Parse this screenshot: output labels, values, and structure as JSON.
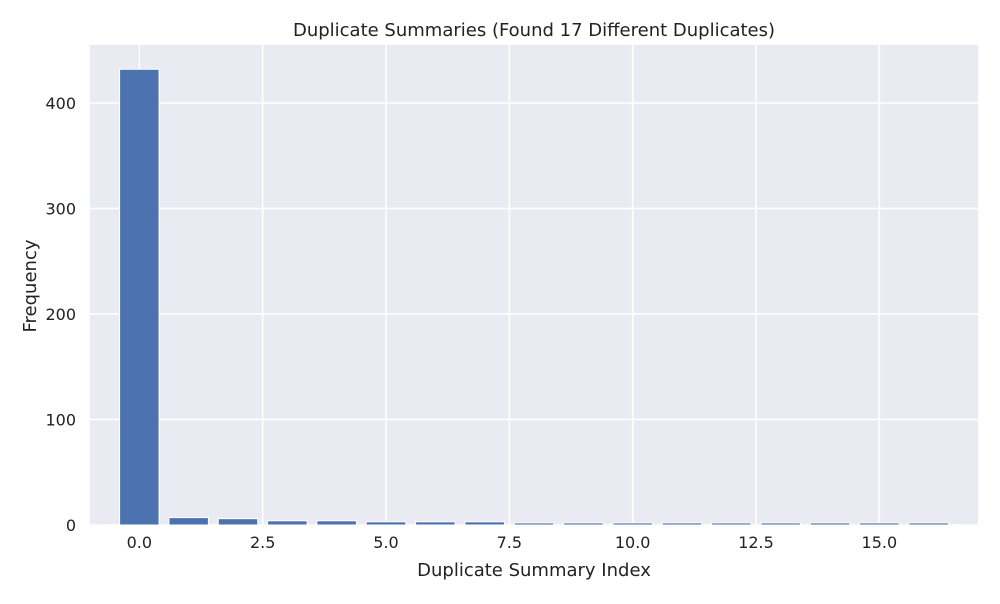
{
  "chart_data": {
    "type": "bar",
    "title": "Duplicate Summaries (Found 17 Different Duplicates)",
    "xlabel": "Duplicate Summary Index",
    "ylabel": "Frequency",
    "x": [
      0,
      1,
      2,
      3,
      4,
      5,
      6,
      7,
      8,
      9,
      10,
      11,
      12,
      13,
      14,
      15,
      16
    ],
    "values": [
      432,
      7,
      6,
      4,
      4,
      3,
      3,
      3,
      2,
      2,
      2,
      2,
      2,
      2,
      2,
      2,
      2
    ],
    "xlim": [
      -1.0,
      17.0
    ],
    "ylim": [
      0,
      455
    ],
    "xticks": [
      0.0,
      2.5,
      5.0,
      7.5,
      10.0,
      12.5,
      15.0
    ],
    "xtick_labels": [
      "0.0",
      "2.5",
      "5.0",
      "7.5",
      "10.0",
      "12.5",
      "15.0"
    ],
    "yticks": [
      0,
      100,
      200,
      300,
      400
    ],
    "ytick_labels": [
      "0",
      "100",
      "200",
      "300",
      "400"
    ],
    "grid": true,
    "bar_color": "#4c72b0",
    "background_color": "#eaeaf2",
    "grid_color": "#ffffff"
  }
}
